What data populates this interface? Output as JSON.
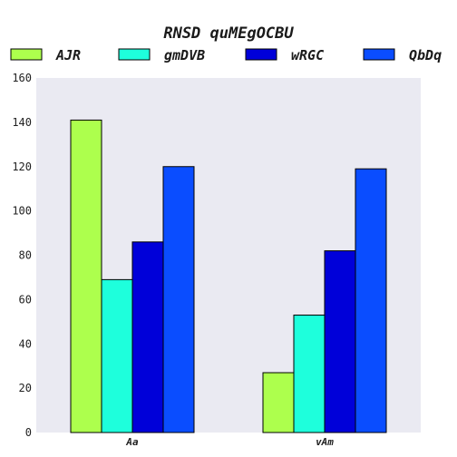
{
  "chart_data": {
    "type": "bar",
    "title": "RNSD quMEgOCBU",
    "xlabel": "",
    "ylabel": "",
    "categories": [
      "Aa",
      "vAm"
    ],
    "series": [
      {
        "name": "AJR",
        "color": "#adff4d",
        "values": [
          141,
          27
        ]
      },
      {
        "name": "gmDVB",
        "color": "#1effdc",
        "values": [
          69,
          53
        ]
      },
      {
        "name": "wRGC",
        "color": "#0000d9",
        "values": [
          86,
          82
        ]
      },
      {
        "name": "QbDq",
        "color": "#0a4dff",
        "values": [
          120,
          119
        ]
      }
    ],
    "ylim": [
      0,
      160
    ],
    "yticks": [
      0,
      20,
      40,
      60,
      80,
      100,
      120,
      140,
      160
    ],
    "grid": false,
    "legend_position": "top",
    "plot_background": "#eaeaf2"
  }
}
